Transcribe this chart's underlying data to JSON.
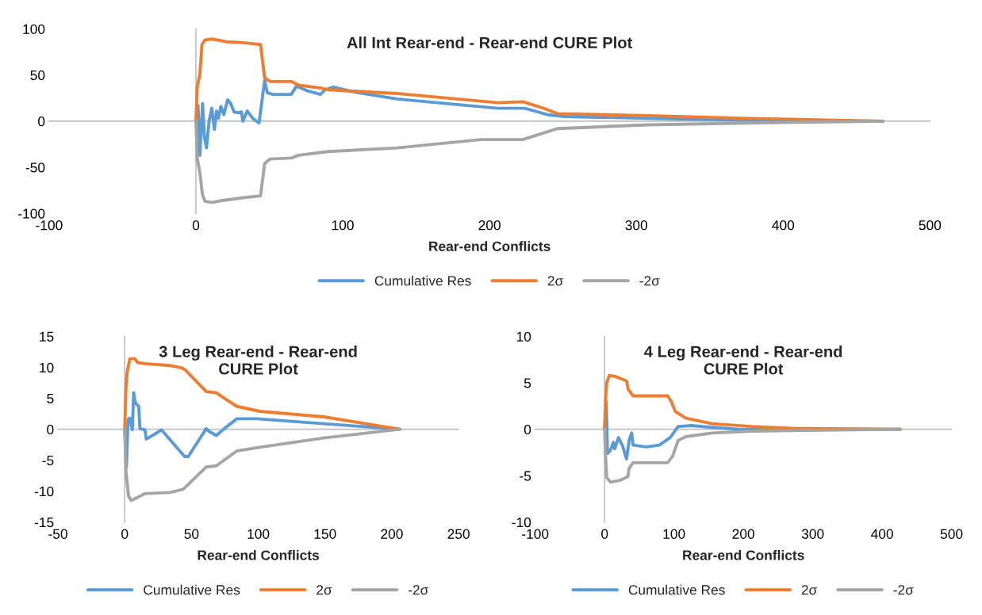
{
  "chart_data": [
    {
      "type": "line",
      "title": "All Int Rear-end - Rear-end CURE Plot",
      "xlabel": "Rear-end Conflicts",
      "xlim": [
        -100,
        500
      ],
      "xticks": [
        -100,
        0,
        100,
        200,
        300,
        400,
        500
      ],
      "ylim": [
        -100,
        100
      ],
      "yticks": [
        -100,
        -50,
        0,
        50,
        100
      ],
      "legend": "bottom",
      "series": [
        {
          "name": "Cumulative Res",
          "color": "#5b9bd5",
          "x": [
            0,
            1.4,
            2.7,
            4.5,
            5.8,
            7.2,
            9,
            10.8,
            12.6,
            14,
            15.3,
            17,
            19,
            21.6,
            23.4,
            26,
            28.8,
            31,
            32,
            35,
            38.7,
            43,
            46.8,
            48.6,
            52.3,
            64.9,
            68.5,
            75.7,
            84.7,
            88,
            93.7,
            110,
            137,
            205.6,
            224,
            239.5,
            251,
            308,
            376,
            468
          ],
          "values": [
            0,
            17,
            -37,
            19,
            -17,
            -29,
            0,
            14,
            -9,
            11,
            3,
            16,
            7,
            23,
            20,
            10,
            9,
            10,
            0,
            11,
            3,
            -2,
            44,
            31,
            29,
            29,
            38,
            33,
            29,
            34,
            37,
            31,
            24,
            14,
            14,
            7,
            5,
            3,
            1,
            0
          ]
        },
        {
          "name": "2σ",
          "color": "#ed7d31",
          "x": [
            0,
            0.9,
            2.7,
            4.1,
            6.3,
            10.8,
            18,
            20.7,
            32.4,
            44,
            46.8,
            50.5,
            65,
            70,
            84.7,
            90,
            137,
            205.6,
            222.7,
            236.8,
            246.5,
            308,
            376,
            468
          ],
          "values": [
            0,
            37,
            51,
            83,
            88,
            89,
            87,
            86,
            85,
            83,
            47,
            43,
            43,
            39,
            36,
            34,
            30,
            20,
            21,
            14,
            8,
            6,
            3,
            0
          ]
        },
        {
          "name": "-2σ",
          "color": "#a5a5a5",
          "x": [
            0,
            0.9,
            2.7,
            4.5,
            6.3,
            10.8,
            18,
            32,
            44,
            46.8,
            50.5,
            65,
            70,
            84.7,
            90,
            137,
            194,
            222.7,
            246.5,
            308,
            376,
            468
          ],
          "values": [
            0,
            -40,
            -56,
            -80,
            -87,
            -88,
            -86,
            -83,
            -81,
            -46,
            -41,
            -40,
            -37,
            -34,
            -33,
            -29,
            -20,
            -20,
            -8,
            -4,
            -2,
            0
          ]
        }
      ]
    },
    {
      "type": "line",
      "title": "3 Leg Rear-end - Rear-end\nCURE Plot",
      "xlabel": "Rear-end Conflicts",
      "xlim": [
        -50,
        250
      ],
      "xticks": [
        -50,
        0,
        50,
        100,
        150,
        200,
        250
      ],
      "ylim": [
        -15,
        15
      ],
      "yticks": [
        -15,
        -10,
        -5,
        0,
        5,
        10,
        15
      ],
      "legend": "bottom",
      "series": [
        {
          "name": "Cumulative Res",
          "color": "#5b9bd5",
          "x": [
            0,
            1.3,
            2.5,
            3.8,
            5.7,
            6.7,
            7.6,
            8.6,
            10.5,
            11.4,
            15.2,
            16.2,
            27.6,
            44.8,
            47.6,
            61,
            62.9,
            68.6,
            74,
            84,
            99,
            149,
            206
          ],
          "values": [
            0,
            -6.1,
            1.6,
            1.8,
            -0.1,
            5.9,
            4.6,
            4.1,
            3.7,
            0.1,
            -0.1,
            -1.6,
            -0.1,
            -4.4,
            -4.4,
            0.1,
            -0.3,
            -1,
            0,
            1.7,
            1.7,
            0.9,
            0
          ]
        },
        {
          "name": "2σ",
          "color": "#ed7d31",
          "x": [
            0,
            1,
            1.9,
            3.8,
            7.6,
            9.5,
            15,
            34,
            43,
            45.7,
            61,
            68.6,
            76,
            84,
            101,
            149,
            206
          ],
          "values": [
            0,
            7.1,
            9.3,
            11.4,
            11.4,
            10.8,
            10.6,
            10.3,
            9.9,
            9.5,
            6.1,
            5.9,
            4.8,
            3.7,
            2.9,
            2,
            0
          ]
        },
        {
          "name": "-2σ",
          "color": "#a5a5a5",
          "x": [
            0,
            1,
            2.9,
            4.8,
            7.6,
            15,
            34,
            43.8,
            61,
            68.6,
            84,
            101,
            149,
            206
          ],
          "values": [
            0,
            -7,
            -10.8,
            -11.5,
            -11.2,
            -10.4,
            -10.2,
            -9.7,
            -6.1,
            -5.9,
            -3.5,
            -2.9,
            -1.4,
            0
          ]
        }
      ]
    },
    {
      "type": "line",
      "title": "4 Leg Rear-end - Rear-end\nCURE Plot",
      "xlabel": "Rear-end Conflicts",
      "xlim": [
        -100,
        500
      ],
      "xticks": [
        -100,
        0,
        100,
        200,
        300,
        400,
        500
      ],
      "ylim": [
        -10,
        10
      ],
      "yticks": [
        -10,
        -5,
        0,
        5,
        10
      ],
      "legend": "bottom",
      "series": [
        {
          "name": "Cumulative Res",
          "color": "#5b9bd5",
          "x": [
            0,
            2.3,
            4.2,
            8.8,
            12.6,
            14.5,
            20,
            26,
            31.6,
            35.4,
            39,
            41,
            60,
            79,
            94.5,
            106,
            125,
            155,
            194,
            426
          ],
          "values": [
            0,
            3.0,
            -2.6,
            -2.2,
            -1.4,
            -2.1,
            -0.9,
            -1.8,
            -3.2,
            -1.2,
            -0.4,
            -1.7,
            -1.9,
            -1.7,
            -0.9,
            0.3,
            0.4,
            0.2,
            0,
            0
          ]
        },
        {
          "name": "2σ",
          "color": "#ed7d31",
          "x": [
            0,
            1.1,
            3,
            6.9,
            14.5,
            22,
            31.6,
            34,
            37,
            41,
            90.7,
            96,
            102,
            117,
            155,
            212,
            270,
            426
          ],
          "values": [
            0,
            2.8,
            5,
            5.8,
            5.7,
            5.5,
            5.2,
            4.3,
            4,
            3.6,
            3.6,
            3,
            1.9,
            1.2,
            0.6,
            0.3,
            0.1,
            0
          ]
        },
        {
          "name": "-2σ",
          "color": "#a5a5a5",
          "x": [
            0,
            1.1,
            3,
            8.8,
            22,
            33.5,
            35.4,
            41,
            90.7,
            98,
            106,
            117,
            155,
            212,
            426
          ],
          "values": [
            0,
            -2.4,
            -5.2,
            -5.7,
            -5.5,
            -5.1,
            -4.2,
            -3.6,
            -3.6,
            -2.9,
            -1.2,
            -0.8,
            -0.4,
            -0.2,
            0
          ]
        }
      ]
    }
  ]
}
